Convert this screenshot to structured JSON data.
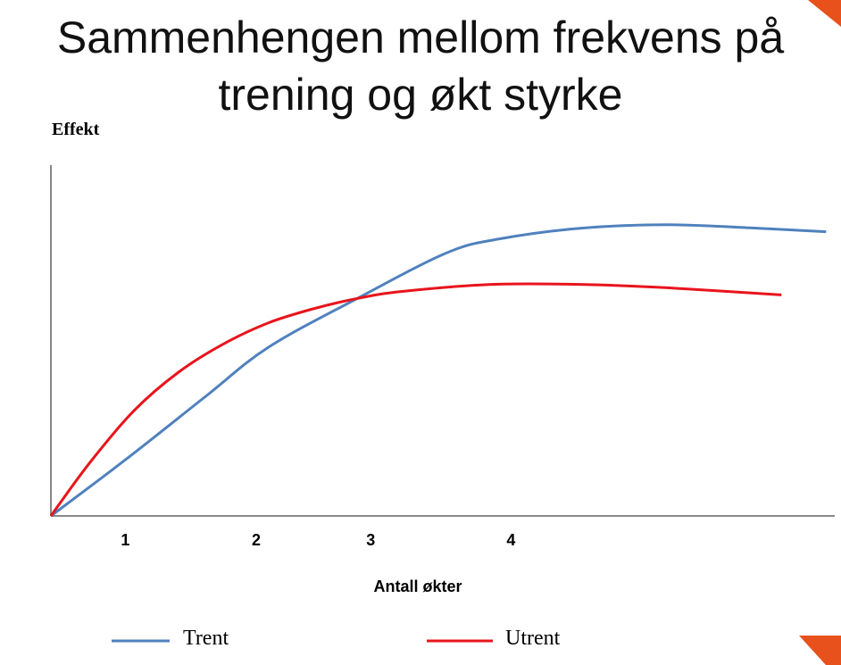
{
  "chart_data": {
    "type": "line",
    "title": "Sammenhengen mellom frekvens på trening og økt styrke",
    "y_label": "Effekt",
    "x_label": "Antall økter",
    "xlim": [
      0,
      1
    ],
    "ylim": [
      0,
      1
    ],
    "xticks": [
      {
        "value": 0.095,
        "label": "1"
      },
      {
        "value": 0.262,
        "label": "2"
      },
      {
        "value": 0.408,
        "label": "3"
      },
      {
        "value": 0.587,
        "label": "4"
      }
    ],
    "series": [
      {
        "name": "Trent",
        "color": "#4f81bd",
        "x": [
          0,
          0.095,
          0.197,
          0.277,
          0.391,
          0.505,
          0.573,
          0.675,
          0.789,
          0.903,
          0.989
        ],
        "values": [
          0,
          0.16,
          0.34,
          0.48,
          0.62,
          0.75,
          0.79,
          0.82,
          0.83,
          0.82,
          0.81
        ]
      },
      {
        "name": "Utrent",
        "color": "#e8141c",
        "x": [
          0,
          0.049,
          0.106,
          0.163,
          0.22,
          0.277,
          0.334,
          0.391,
          0.448,
          0.562,
          0.675,
          0.789,
          0.932
        ],
        "values": [
          0,
          0.15,
          0.3,
          0.41,
          0.49,
          0.55,
          0.59,
          0.62,
          0.64,
          0.66,
          0.66,
          0.65,
          0.63
        ]
      }
    ]
  }
}
